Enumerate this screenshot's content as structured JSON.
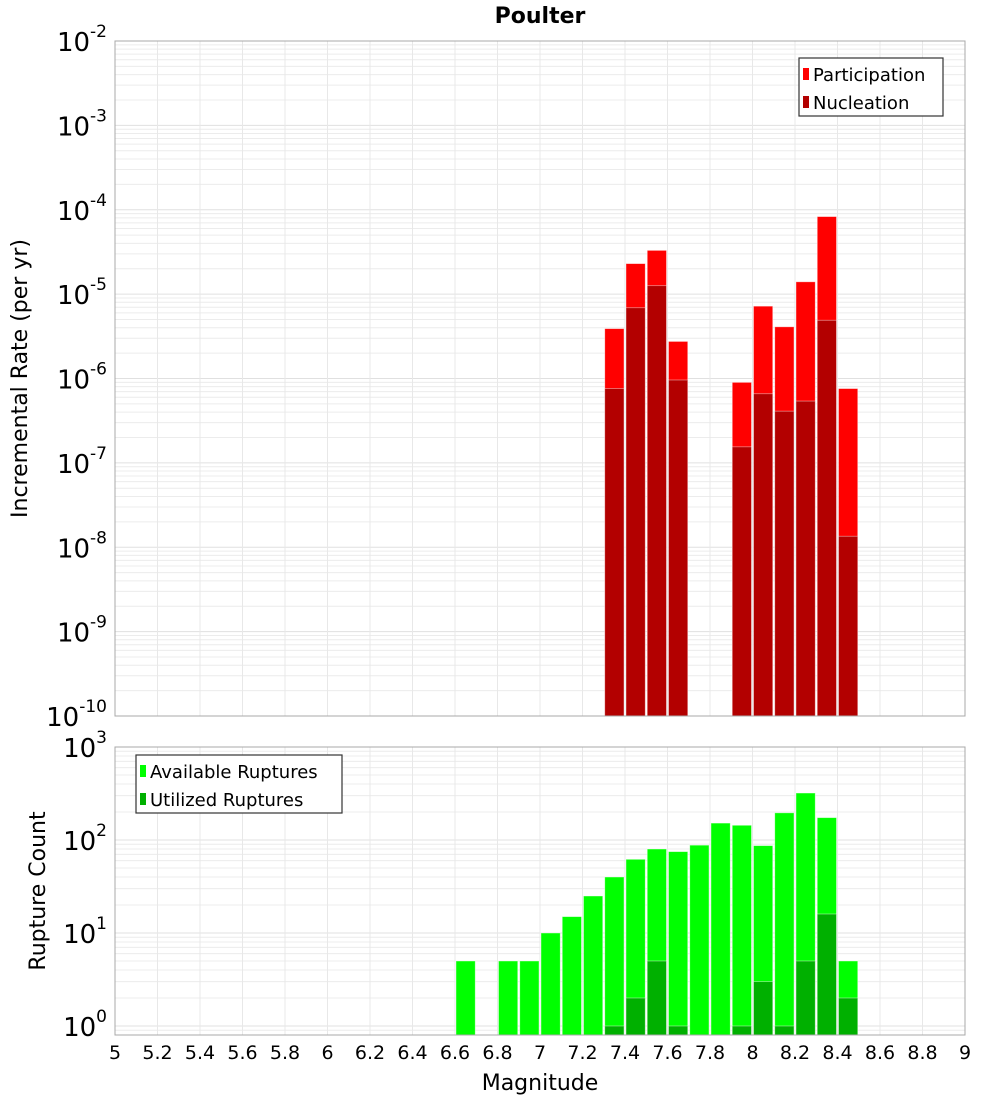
{
  "chart_data": [
    {
      "type": "bar",
      "title": "Poulter",
      "xlabel": "",
      "ylabel": "Incremental Rate (per yr)",
      "yscale": "log",
      "ylim": [
        1e-10,
        0.01
      ],
      "xlim": [
        5,
        9
      ],
      "bar_width": 0.1,
      "y_tick_base": "10",
      "y_tick_exponents": [
        "-2",
        "-3",
        "-4",
        "-5",
        "-6",
        "-7",
        "-8",
        "-9",
        "-10"
      ],
      "legend_position": "top-right",
      "series": [
        {
          "name": "Participation",
          "color": "#ff0000",
          "x": [
            7.35,
            7.45,
            7.55,
            7.65,
            7.95,
            8.05,
            8.15,
            8.25,
            8.35,
            8.45
          ],
          "values": [
            3.9e-06,
            2.3e-05,
            3.3e-05,
            2.75e-06,
            9e-07,
            7.2e-06,
            4.1e-06,
            1.4e-05,
            8.3e-05,
            7.6e-07
          ]
        },
        {
          "name": "Nucleation",
          "color": "#b30000",
          "x": [
            7.35,
            7.45,
            7.55,
            7.65,
            7.95,
            8.05,
            8.15,
            8.25,
            8.35,
            8.45
          ],
          "values": [
            7.6e-07,
            6.9e-06,
            1.26e-05,
            9.6e-07,
            1.55e-07,
            6.6e-07,
            4.1e-07,
            5.4e-07,
            4.9e-06,
            1.35e-08
          ]
        }
      ]
    },
    {
      "type": "bar",
      "title": "",
      "xlabel": "Magnitude",
      "ylabel": "Rupture Count",
      "yscale": "log",
      "ylim": [
        0.8,
        1000
      ],
      "xlim": [
        5,
        9
      ],
      "bar_width": 0.1,
      "x_ticks": [
        "5",
        "5.2",
        "5.4",
        "5.6",
        "5.8",
        "6",
        "6.2",
        "6.4",
        "6.6",
        "6.8",
        "7",
        "7.2",
        "7.4",
        "7.6",
        "7.8",
        "8",
        "8.2",
        "8.4",
        "8.6",
        "8.8",
        "9"
      ],
      "y_tick_base": "10",
      "y_tick_exponents": [
        "3",
        "2",
        "1",
        "0"
      ],
      "legend_position": "top-left",
      "series": [
        {
          "name": "Available Ruptures",
          "color": "#00ff00",
          "x": [
            6.65,
            6.85,
            6.95,
            7.05,
            7.15,
            7.25,
            7.35,
            7.45,
            7.55,
            7.65,
            7.75,
            7.85,
            7.95,
            8.05,
            8.15,
            8.25,
            8.35,
            8.45
          ],
          "values": [
            5,
            5,
            5,
            10,
            15,
            25,
            40,
            62,
            80,
            75,
            88,
            152,
            144,
            87,
            196,
            320,
            174,
            5
          ]
        },
        {
          "name": "Utilized Ruptures",
          "color": "#00b000",
          "x": [
            7.35,
            7.45,
            7.55,
            7.65,
            7.95,
            8.05,
            8.15,
            8.25,
            8.35,
            8.45
          ],
          "values": [
            1,
            2,
            5,
            1,
            1,
            3,
            1,
            5,
            16,
            2
          ]
        }
      ]
    }
  ]
}
